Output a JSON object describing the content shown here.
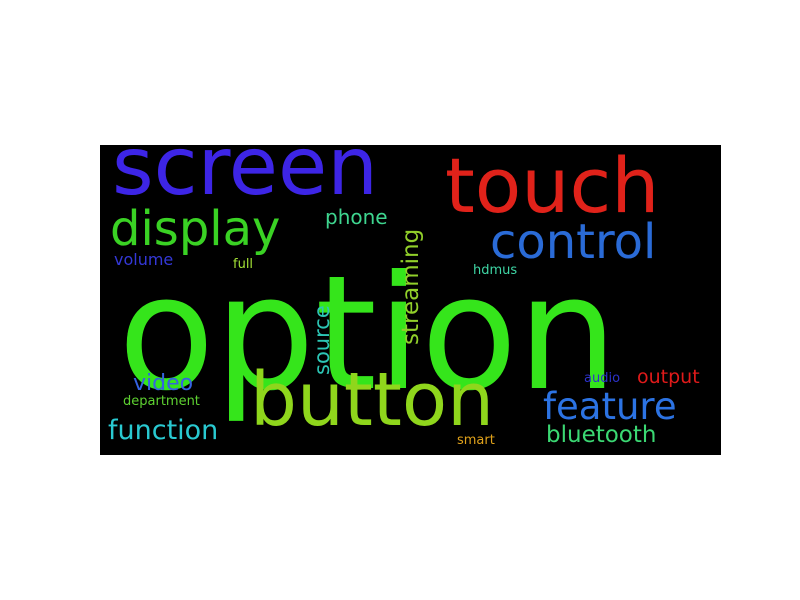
{
  "wordcloud": {
    "background": "#000000",
    "words": {
      "option": {
        "text": "option",
        "color": "#35e51b"
      },
      "screen": {
        "text": "screen",
        "color": "#3d25e6"
      },
      "touch": {
        "text": "touch",
        "color": "#e0221a"
      },
      "button": {
        "text": "button",
        "color": "#8fd61c"
      },
      "display": {
        "text": "display",
        "color": "#3ad224"
      },
      "control": {
        "text": "control",
        "color": "#2a6bd7"
      },
      "feature": {
        "text": "feature",
        "color": "#2c73e3"
      },
      "function": {
        "text": "function",
        "color": "#29c9d1"
      },
      "bluetooth": {
        "text": "bluetooth",
        "color": "#3bd873"
      },
      "video": {
        "text": "video",
        "color": "#3563e2"
      },
      "phone": {
        "text": "phone",
        "color": "#3ed58f"
      },
      "streaming": {
        "text": "streaming",
        "color": "#91cf2a"
      },
      "source": {
        "text": "source",
        "color": "#2cc6b5"
      },
      "output": {
        "text": "output",
        "color": "#e01a1a"
      },
      "volume": {
        "text": "volume",
        "color": "#3438d8"
      },
      "full": {
        "text": "full",
        "color": "#a3e236"
      },
      "hdmus": {
        "text": "hdmus",
        "color": "#3fd6a5"
      },
      "audio": {
        "text": "audio",
        "color": "#2c32c9"
      },
      "department": {
        "text": "department",
        "color": "#5ed131"
      },
      "smart": {
        "text": "smart",
        "color": "#e0a21b"
      }
    }
  }
}
